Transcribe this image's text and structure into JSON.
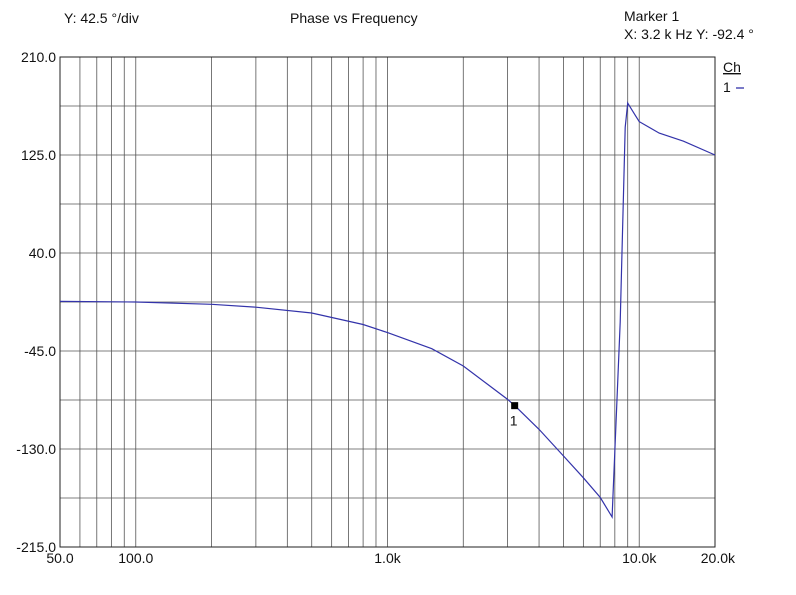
{
  "header": {
    "scale_label": "Y: 42.5 °/div",
    "title": "Phase vs Frequency",
    "marker_name": "Marker 1",
    "marker_readout": "X: 3.2 k Hz  Y: -92.4  °"
  },
  "legend": {
    "header": "Ch",
    "entries": [
      {
        "label": "1",
        "color": "#3333aa"
      }
    ]
  },
  "chart_data": {
    "type": "line",
    "title": "Phase vs Frequency",
    "x_scale": "log",
    "xlim": [
      50,
      20000
    ],
    "ylim": [
      -215,
      210
    ],
    "y_ticks": [
      210.0,
      125.0,
      40.0,
      -45.0,
      -130.0,
      -215.0
    ],
    "y_tick_labels": [
      "210.0",
      "125.0",
      "40.0",
      "-45.0",
      "-130.0",
      "-215.0"
    ],
    "x_ticks": [
      50,
      100,
      1000,
      10000,
      20000
    ],
    "x_tick_labels": [
      "50.0",
      "100.0",
      "1.0k",
      "10.0k",
      "20.0k"
    ],
    "grid": true,
    "line_color": "#3333aa",
    "series": [
      {
        "name": "1",
        "x": [
          50,
          100,
          200,
          300,
          500,
          800,
          1000,
          1500,
          2000,
          2500,
          3000,
          3200,
          4000,
          5000,
          6000,
          7000,
          7800,
          8400,
          8800,
          9000,
          10000,
          12000,
          15000,
          20000
        ],
        "y": [
          -2,
          -2.5,
          -4.5,
          -7,
          -12,
          -22,
          -29,
          -43,
          -58,
          -74,
          -87,
          -92.4,
          -113,
          -136,
          -155,
          -172,
          -189,
          -20,
          149,
          170,
          154,
          144,
          137,
          125
        ]
      }
    ],
    "markers": [
      {
        "label": "1",
        "x": 3200,
        "y": -92.4
      }
    ]
  }
}
